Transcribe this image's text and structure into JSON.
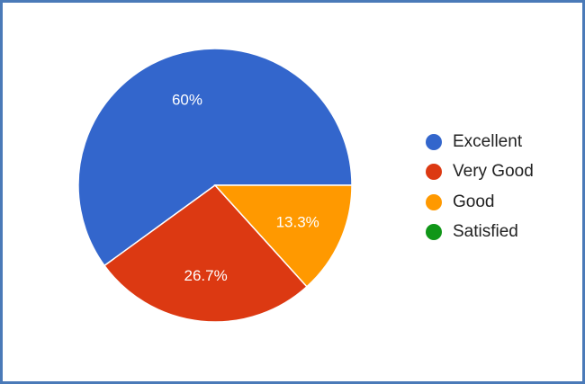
{
  "chart_data": {
    "type": "pie",
    "title": "",
    "slices": [
      {
        "label": "Excellent",
        "value": 60,
        "display": "60%",
        "color": "#3366cc"
      },
      {
        "label": "Very Good",
        "value": 26.7,
        "display": "26.7%",
        "color": "#dc3912"
      },
      {
        "label": "Good",
        "value": 13.3,
        "display": "13.3%",
        "color": "#ff9900"
      },
      {
        "label": "Satisfied",
        "value": 0,
        "display": "",
        "color": "#109618"
      }
    ],
    "legend_position": "right"
  },
  "colors": {
    "frame_border": "#4a7ab8",
    "slice_text": "#ffffff"
  }
}
